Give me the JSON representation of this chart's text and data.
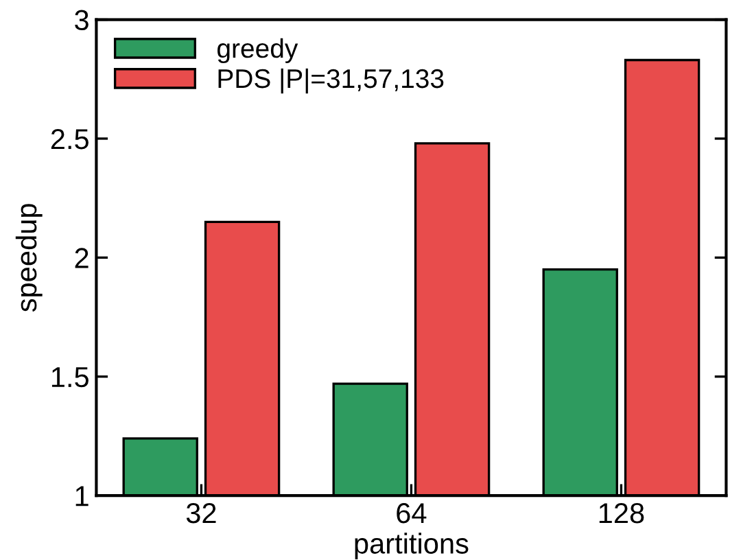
{
  "chart_data": {
    "type": "bar",
    "xlabel": "partitions",
    "ylabel": "speedup",
    "categories": [
      "32",
      "64",
      "128"
    ],
    "series": [
      {
        "name": "greedy",
        "color": "#2e9b5f",
        "values": [
          1.24,
          1.47,
          1.95
        ]
      },
      {
        "name": "PDS |P|=31,57,133",
        "color": "#e84c4c",
        "values": [
          2.15,
          2.48,
          2.83
        ]
      }
    ],
    "ylim": [
      1,
      3
    ],
    "yticks": [
      1,
      1.5,
      2,
      2.5,
      3
    ],
    "grid": false,
    "legend": "top left"
  }
}
